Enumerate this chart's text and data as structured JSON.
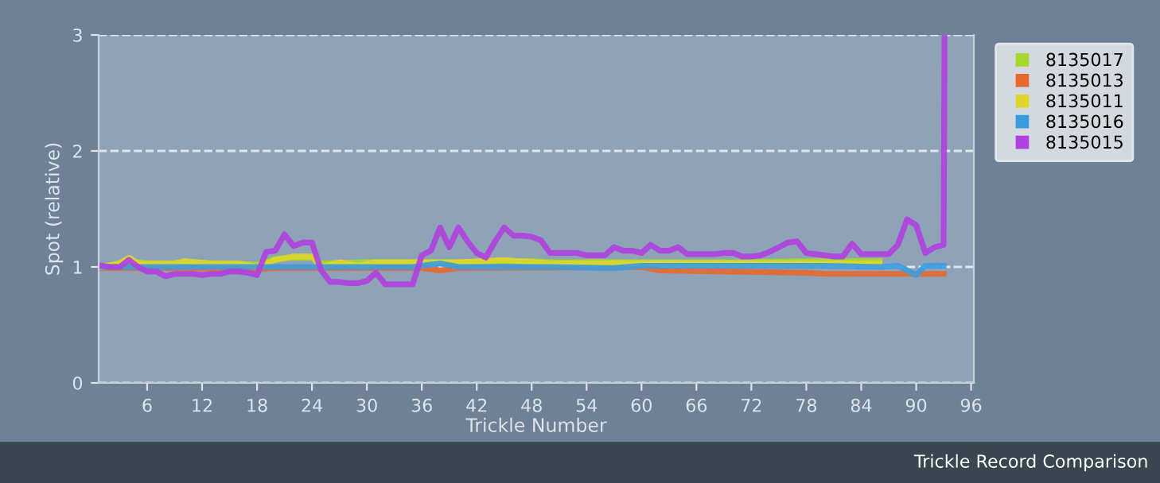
{
  "chart_data": {
    "type": "line",
    "xlabel": "Trickle Number",
    "ylabel": "Spot (relative)",
    "annotations": [
      "Trickle Record Comparison"
    ],
    "xlim": [
      0.7,
      96.3
    ],
    "xticks": [
      6,
      12,
      18,
      24,
      30,
      36,
      42,
      48,
      54,
      60,
      66,
      72,
      78,
      84,
      90,
      96
    ],
    "ylim": [
      0,
      3
    ],
    "yticks": [
      0,
      1,
      2,
      3
    ],
    "grid": "y",
    "legend": "top right",
    "marker": "none",
    "line_style": "solid",
    "series": [
      {
        "name": "8135017",
        "color": "#a8d82c",
        "x": [
          1,
          4,
          6,
          10,
          14,
          18,
          19,
          20,
          22,
          24,
          25,
          30,
          36,
          40,
          45,
          48,
          50,
          60,
          70,
          80,
          86
        ],
        "values": [
          1.0,
          1.05,
          1.03,
          1.03,
          1.03,
          1.02,
          1.04,
          1.07,
          1.08,
          1.08,
          1.03,
          1.04,
          1.04,
          1.04,
          1.05,
          1.05,
          1.04,
          1.04,
          1.04,
          1.05,
          1.05
        ]
      },
      {
        "name": "8135013",
        "color": "#e8682c",
        "x": [
          1,
          10,
          18,
          20,
          30,
          36,
          38,
          40,
          60,
          62,
          70,
          78,
          80,
          90,
          93
        ],
        "values": [
          0.99,
          0.99,
          0.98,
          0.99,
          0.99,
          0.99,
          0.97,
          0.99,
          1.0,
          0.97,
          0.96,
          0.95,
          0.94,
          0.94,
          0.94
        ]
      },
      {
        "name": "8135011",
        "color": "#ded62c",
        "x": [
          1,
          3,
          4,
          5,
          9,
          10,
          13,
          16,
          18,
          20,
          22,
          24,
          25,
          27,
          29,
          31,
          36,
          40,
          45,
          50,
          60,
          70,
          80,
          86
        ],
        "values": [
          1.0,
          1.03,
          1.08,
          1.03,
          1.03,
          1.05,
          1.03,
          1.03,
          1.0,
          1.06,
          1.09,
          1.09,
          1.0,
          1.04,
          1.01,
          1.04,
          1.04,
          1.04,
          1.06,
          1.03,
          1.03,
          1.03,
          1.03,
          1.03
        ]
      },
      {
        "name": "8135016",
        "color": "#3a9ce0",
        "x": [
          1,
          10,
          20,
          30,
          35,
          38,
          40,
          50,
          57,
          60,
          70,
          80,
          86,
          88,
          90,
          91,
          93
        ],
        "values": [
          1.0,
          1.0,
          1.0,
          1.0,
          1.0,
          1.03,
          1.0,
          1.0,
          0.99,
          1.01,
          1.01,
          1.01,
          1.0,
          1.01,
          0.93,
          1.01,
          1.01
        ]
      },
      {
        "name": "8135015",
        "color": "#b040e0",
        "x": [
          1,
          2,
          3,
          4,
          5,
          6,
          7,
          8,
          9,
          10,
          11,
          12,
          13,
          14,
          15,
          16,
          17,
          18,
          19,
          20,
          21,
          22,
          23,
          24,
          25,
          26,
          27,
          28,
          29,
          30,
          31,
          32,
          33,
          34,
          35,
          36,
          37,
          38,
          39,
          40,
          41,
          42,
          43,
          44,
          45,
          46,
          47,
          48,
          49,
          50,
          51,
          52,
          53,
          54,
          55,
          56,
          57,
          58,
          59,
          60,
          61,
          62,
          63,
          64,
          65,
          66,
          67,
          68,
          69,
          70,
          71,
          72,
          73,
          74,
          75,
          76,
          77,
          78,
          79,
          80,
          81,
          82,
          83,
          84,
          85,
          86,
          87,
          88,
          89,
          90,
          91,
          92,
          93,
          93.1
        ],
        "values": [
          1.01,
          1.0,
          1.0,
          1.06,
          1.0,
          0.96,
          0.96,
          0.92,
          0.94,
          0.94,
          0.94,
          0.93,
          0.94,
          0.94,
          0.96,
          0.96,
          0.95,
          0.93,
          1.13,
          1.14,
          1.28,
          1.18,
          1.21,
          1.21,
          0.97,
          0.87,
          0.87,
          0.86,
          0.86,
          0.88,
          0.95,
          0.85,
          0.85,
          0.85,
          0.85,
          1.1,
          1.14,
          1.34,
          1.17,
          1.34,
          1.22,
          1.12,
          1.08,
          1.22,
          1.34,
          1.27,
          1.27,
          1.26,
          1.23,
          1.12,
          1.12,
          1.12,
          1.12,
          1.1,
          1.1,
          1.1,
          1.17,
          1.14,
          1.14,
          1.12,
          1.19,
          1.14,
          1.14,
          1.17,
          1.11,
          1.11,
          1.11,
          1.11,
          1.12,
          1.12,
          1.09,
          1.09,
          1.1,
          1.13,
          1.17,
          1.21,
          1.22,
          1.12,
          1.11,
          1.1,
          1.09,
          1.09,
          1.2,
          1.11,
          1.11,
          1.11,
          1.11,
          1.19,
          1.41,
          1.36,
          1.12,
          1.17,
          1.19,
          3.0
        ]
      }
    ]
  }
}
